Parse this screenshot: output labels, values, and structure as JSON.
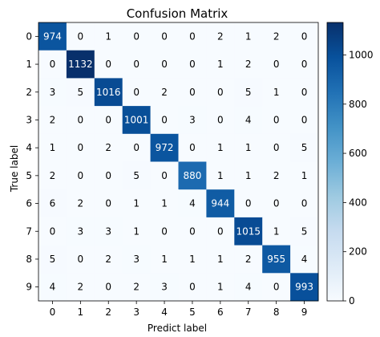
{
  "chart_data": {
    "type": "heatmap",
    "title": "Confusion Matrix",
    "xlabel": "Predict label",
    "ylabel": "True label",
    "x_categories": [
      "0",
      "1",
      "2",
      "3",
      "4",
      "5",
      "6",
      "7",
      "8",
      "9"
    ],
    "y_categories": [
      "0",
      "1",
      "2",
      "3",
      "4",
      "5",
      "6",
      "7",
      "8",
      "9"
    ],
    "matrix": [
      [
        974,
        0,
        1,
        0,
        0,
        0,
        2,
        1,
        2,
        0
      ],
      [
        0,
        1132,
        0,
        0,
        0,
        0,
        1,
        2,
        0,
        0
      ],
      [
        3,
        5,
        1016,
        0,
        2,
        0,
        0,
        5,
        1,
        0
      ],
      [
        2,
        0,
        0,
        1001,
        0,
        3,
        0,
        4,
        0,
        0
      ],
      [
        1,
        0,
        2,
        0,
        972,
        0,
        1,
        1,
        0,
        5
      ],
      [
        2,
        0,
        0,
        5,
        0,
        880,
        1,
        1,
        2,
        1
      ],
      [
        6,
        2,
        0,
        1,
        1,
        4,
        944,
        0,
        0,
        0
      ],
      [
        0,
        3,
        3,
        1,
        0,
        0,
        0,
        1015,
        1,
        5
      ],
      [
        5,
        0,
        2,
        3,
        1,
        1,
        1,
        2,
        955,
        4
      ],
      [
        4,
        2,
        0,
        2,
        3,
        0,
        1,
        4,
        0,
        993
      ]
    ],
    "colorbar": {
      "colormap": "Blues",
      "range": [
        0,
        1132
      ],
      "ticks": [
        0,
        200,
        400,
        600,
        800,
        1000
      ]
    },
    "grid": false
  }
}
